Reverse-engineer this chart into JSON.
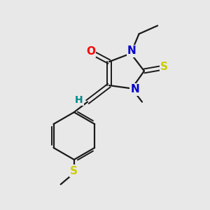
{
  "background_color": "#e8e8e8",
  "bond_color": "#1a1a1a",
  "atom_colors": {
    "O": "#ff0000",
    "N": "#0000cc",
    "S_thioxo": "#cccc00",
    "S_thioether": "#cccc00",
    "H": "#008888",
    "C": "#1a1a1a"
  },
  "figsize": [
    3.0,
    3.0
  ],
  "dpi": 100
}
